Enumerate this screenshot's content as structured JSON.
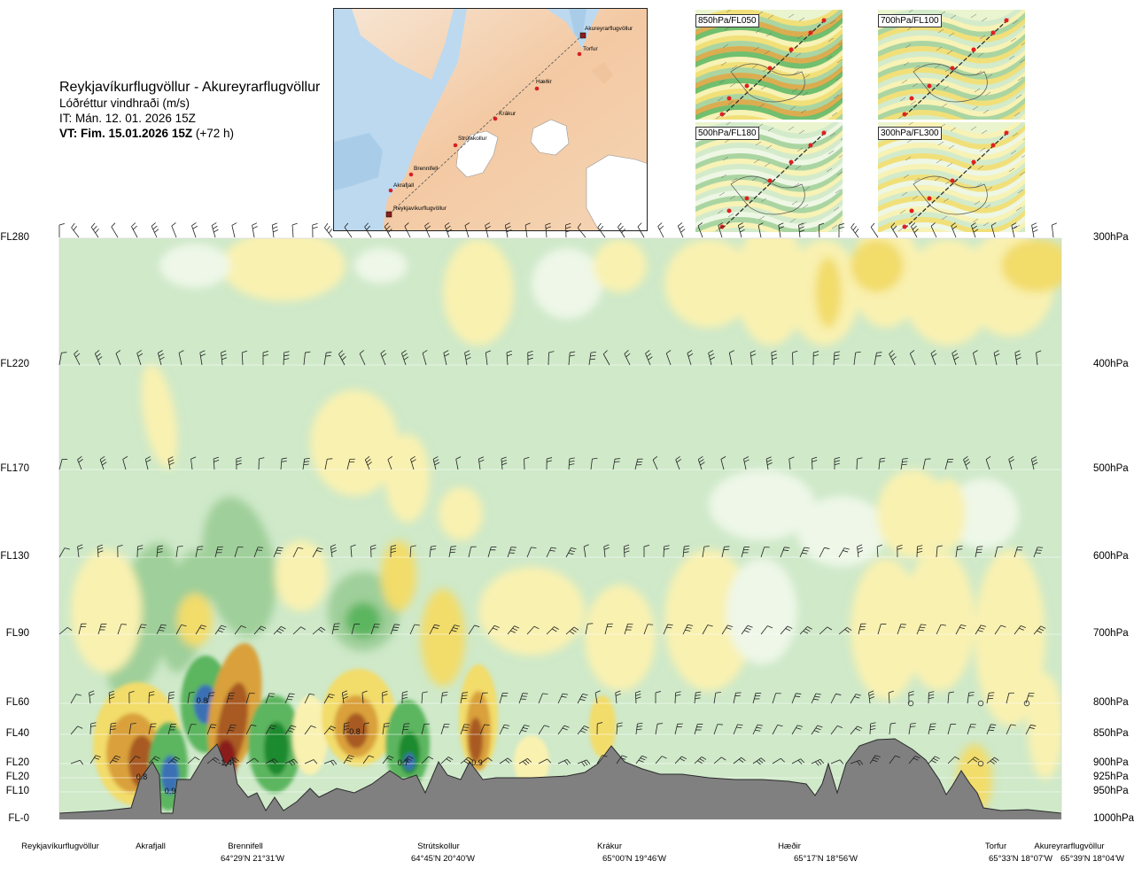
{
  "header": {
    "title": "Reykjavíkurflugvöllur - Akureyrarflugvöllur",
    "subtitle": "Lóðréttur vindhraði (m/s)",
    "it_line": "IT: Mán. 12. 01. 2026 15Z",
    "vt_bold": "VT: Fim. 15.01.2026 15Z",
    "vt_lead": "(+72 h)"
  },
  "route_map": {
    "stations": [
      {
        "name": "Akureyrarflugvöllur",
        "kind": "airport"
      },
      {
        "name": "Torfur",
        "kind": "waypoint"
      },
      {
        "name": "Hæðir",
        "kind": "waypoint"
      },
      {
        "name": "Krákur",
        "kind": "waypoint"
      },
      {
        "name": "Strútskollur",
        "kind": "waypoint"
      },
      {
        "name": "Brennifell",
        "kind": "waypoint"
      },
      {
        "name": "Akrafjall",
        "kind": "waypoint"
      },
      {
        "name": "Reykjavíkurflugvöllur",
        "kind": "airport"
      }
    ]
  },
  "level_maps": [
    {
      "label": "850hPa/FL050"
    },
    {
      "label": "700hPa/FL100"
    },
    {
      "label": "500hPa/FL180"
    },
    {
      "label": "300hPa/FL300"
    }
  ],
  "colors": {
    "light_green": "#cfe9c9",
    "mid_green": "#9fcf9a",
    "green": "#5cb55e",
    "dark_green": "#1f8a2e",
    "blue": "#3b6fb5",
    "pale_yellow": "#f9f1b0",
    "yellow": "#f2dc6a",
    "orange": "#d9a03a",
    "brown": "#a85a24",
    "dark_red": "#8b1d1d",
    "terrain": "#808080",
    "near_zero": "#eef7e8"
  },
  "chart_data": {
    "type": "heatmap",
    "title": "Lóðréttur vindhraði (m/s)",
    "y_left_labels": [
      "FL280",
      "FL220",
      "FL170",
      "FL130",
      "FL90",
      "FL60",
      "FL40",
      "FL20",
      "FL20",
      "FL10",
      "FL-0"
    ],
    "y_right_labels": [
      "300hPa",
      "400hPa",
      "500hPa",
      "600hPa",
      "700hPa",
      "800hPa",
      "850hPa",
      "900hPa",
      "925hPa",
      "950hPa",
      "1000hPa"
    ],
    "y_pressure_hpa": [
      300,
      400,
      500,
      600,
      700,
      800,
      850,
      900,
      925,
      950,
      1000
    ],
    "x_locations": [
      {
        "name": "Reykjavíkurflugvöllur",
        "coord": ""
      },
      {
        "name": "Akrafjall",
        "coord": ""
      },
      {
        "name": "Brennifell",
        "coord": "64°29'N 21°31'W"
      },
      {
        "name": "Strútskollur",
        "coord": "64°45'N 20°40'W"
      },
      {
        "name": "Krákur",
        "coord": "65°00'N 19°46'W"
      },
      {
        "name": "Hæðir",
        "coord": "65°17'N 18°56'W"
      },
      {
        "name": "Torfur",
        "coord": "65°33'N 18°07'W"
      },
      {
        "name": "Akureyrarflugvöllur",
        "coord": "65°39'N 18°04'W"
      }
    ],
    "annotations": [
      {
        "text": "0.8",
        "near": "Akrafjall",
        "level_hpa": 925
      },
      {
        "text": "0.9",
        "near": "Akrafjall",
        "level_hpa": 940
      },
      {
        "text": "0.8",
        "near": "Brennifell",
        "level_hpa": 800
      },
      {
        "text": "-1.4",
        "near": "Brennifell",
        "level_hpa": 900
      },
      {
        "text": "-0.8",
        "near": "Strútskollur",
        "level_hpa": 850
      },
      {
        "text": "0.7",
        "near": "Strútskollur",
        "level_hpa": 900
      },
      {
        "text": "-0.9",
        "near": "Strútskollur",
        "level_hpa": 900
      }
    ]
  }
}
